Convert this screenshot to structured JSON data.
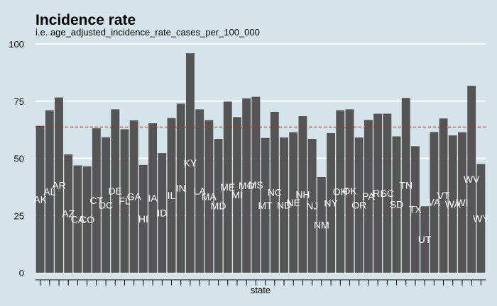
{
  "chart_data": {
    "type": "bar",
    "title": "Incidence rate",
    "subtitle": "i.e. age_adjusted_incidence_rate_cases_per_100_000",
    "xlabel": "state",
    "ylabel": "",
    "ylim": [
      0,
      100
    ],
    "yticks": [
      0,
      25,
      50,
      75,
      100
    ],
    "reference_line": 63.7,
    "colors": {
      "background": "#d5e4eb",
      "bar": "#555555",
      "grid": "#ffffff",
      "reference_line": "#cc2222",
      "bar_label": "#ffffff"
    },
    "categories": [
      "AK",
      "AL",
      "AR",
      "AZ",
      "CA",
      "CO",
      "CT",
      "DC",
      "DE",
      "FL",
      "GA",
      "HI",
      "IA",
      "ID",
      "IL",
      "IN",
      "KY",
      "LA",
      "MA",
      "MD",
      "ME",
      "MI",
      "MO",
      "MS",
      "MT",
      "NC",
      "ND",
      "NE",
      "NH",
      "NJ",
      "NM",
      "NY",
      "OH",
      "OK",
      "OR",
      "PA",
      "RI",
      "SC",
      "SD",
      "TN",
      "TX",
      "UT",
      "VA",
      "VT",
      "WA",
      "WI",
      "WV",
      "WY"
    ],
    "values": [
      64.2,
      71.0,
      76.6,
      51.7,
      46.9,
      46.5,
      63.1,
      59.2,
      71.4,
      62.7,
      66.6,
      47.1,
      65.3,
      52.3,
      67.6,
      73.9,
      95.9,
      71.4,
      66.7,
      58.5,
      74.8,
      68.0,
      76.2,
      76.9,
      58.9,
      70.3,
      59.1,
      61.4,
      68.4,
      58.5,
      41.8,
      61.0,
      71.0,
      71.4,
      59.1,
      66.8,
      69.5,
      69.5,
      59.6,
      76.4,
      55.3,
      29.0,
      61.5,
      67.4,
      60.0,
      61.4,
      81.7,
      47.5
    ]
  }
}
